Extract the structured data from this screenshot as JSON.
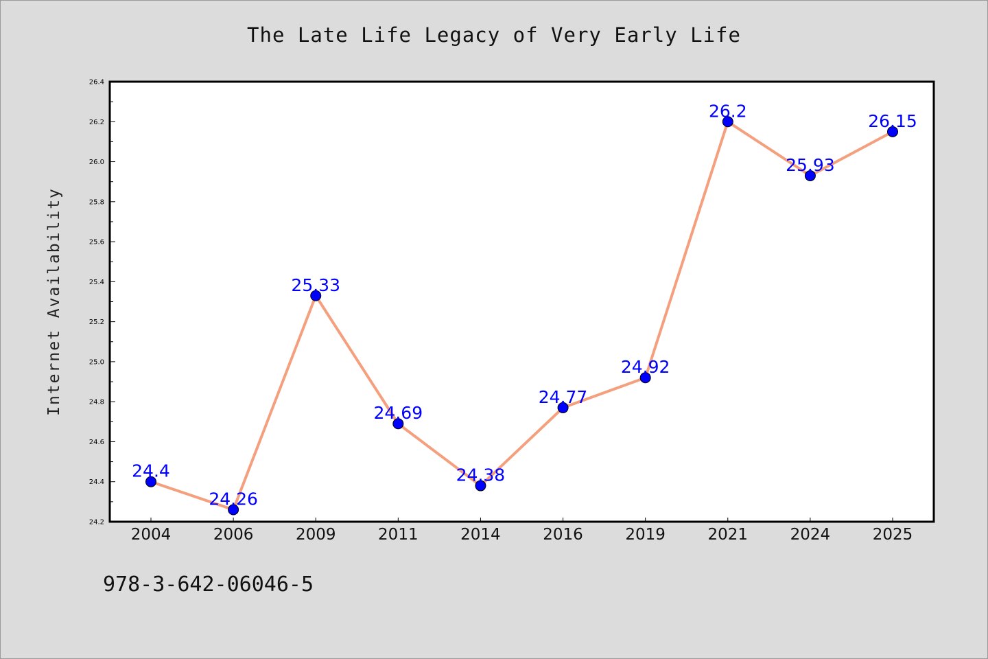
{
  "chart_data": {
    "type": "line",
    "title": "The Late Life Legacy of Very Early Life",
    "xlabel": "",
    "ylabel": "Internet Availability",
    "categories": [
      "2004",
      "2006",
      "2009",
      "2011",
      "2014",
      "2016",
      "2019",
      "2021",
      "2024",
      "2025"
    ],
    "series": [
      {
        "values": [
          24.4,
          24.26,
          25.33,
          24.69,
          24.38,
          24.77,
          24.92,
          26.2,
          25.93,
          26.15
        ],
        "data_labels": [
          "24.4",
          "24.26",
          "25.33",
          "24.69",
          "24.38",
          "24.77",
          "24.92",
          "26.2",
          "25.93",
          "26.15"
        ]
      }
    ],
    "ylim": [
      24.2,
      26.4
    ],
    "yticks": [
      "24.2",
      "24.4",
      "24.6",
      "24.8",
      "25.0",
      "25.2",
      "25.4",
      "25.6",
      "25.8",
      "26.0",
      "26.2",
      "26.4"
    ],
    "grid": false,
    "legend": "none",
    "colors": {
      "line": "#f4a07e",
      "marker": "#0000ff",
      "marker_edge": "#000000",
      "data_label": "#0000ff",
      "plot_background": "#ffffff",
      "page_background": "#dcdcdc"
    }
  },
  "footer": {
    "id": "978-3-642-06046-5"
  }
}
